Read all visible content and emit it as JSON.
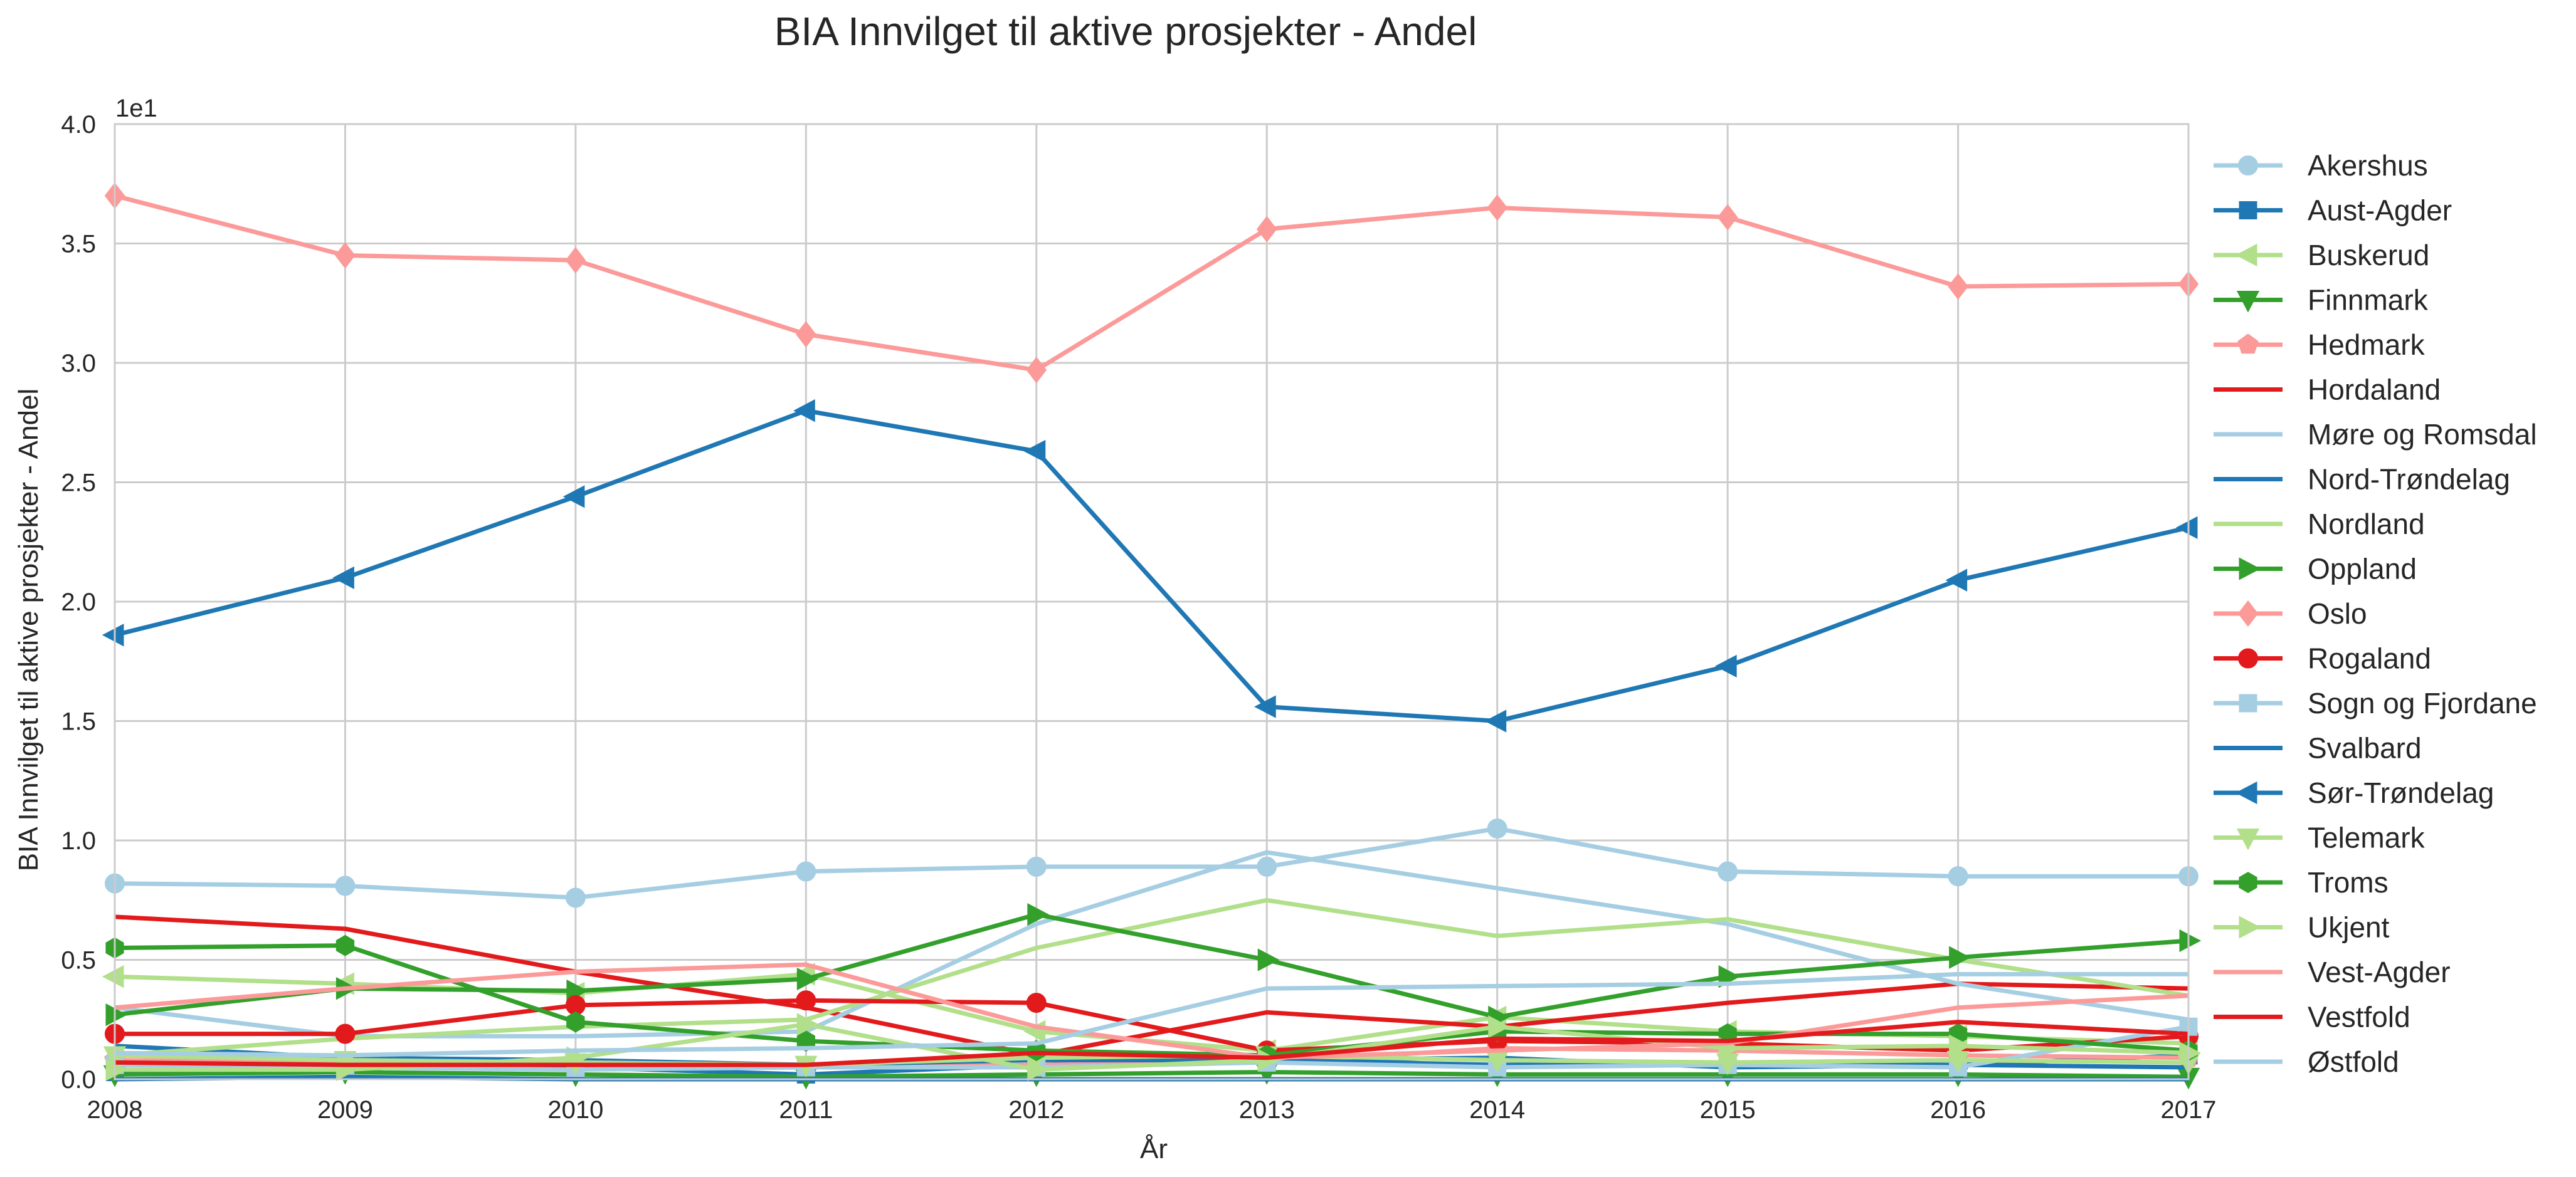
{
  "chart_data": {
    "type": "line",
    "title": "BIA Innvilget til aktive prosjekter - Andel",
    "xlabel": "År",
    "ylabel": "BIA Innvilget til aktive prosjekter - Andel",
    "y_offset_label": "1e1",
    "x": [
      2008,
      2009,
      2010,
      2011,
      2012,
      2013,
      2014,
      2015,
      2016,
      2017
    ],
    "x_ticks": [
      "2008",
      "2009",
      "2010",
      "2011",
      "2012",
      "2013",
      "2014",
      "2015",
      "2016",
      "2017"
    ],
    "y_ticks": [
      "0.0",
      "0.5",
      "1.0",
      "1.5",
      "2.0",
      "2.5",
      "3.0",
      "3.5",
      "4.0"
    ],
    "ylim": [
      0,
      4.0
    ],
    "xlim": [
      2008,
      2017
    ],
    "grid": true,
    "legend_position": "right, outside",
    "series": [
      {
        "name": "Akershus",
        "color": "#a6cee3",
        "marker": "circle",
        "values": [
          0.82,
          0.81,
          0.76,
          0.87,
          0.89,
          0.89,
          1.05,
          0.87,
          0.85,
          0.85
        ]
      },
      {
        "name": "Aust-Agder",
        "color": "#1f78b4",
        "marker": "square",
        "values": [
          0.03,
          0.05,
          0.05,
          0.02,
          0.06,
          0.08,
          0.09,
          0.05,
          0.06,
          0.1
        ]
      },
      {
        "name": "Buskerud",
        "color": "#b2df8a",
        "marker": "triangle-left",
        "values": [
          0.43,
          0.4,
          0.36,
          0.44,
          0.2,
          0.12,
          0.26,
          0.2,
          0.18,
          0.15
        ]
      },
      {
        "name": "Finnmark",
        "color": "#33a02c",
        "marker": "triangle-down",
        "values": [
          0.02,
          0.03,
          0.02,
          0.01,
          0.02,
          0.03,
          0.02,
          0.02,
          0.02,
          0.01
        ]
      },
      {
        "name": "Hedmark",
        "color": "#fb9a99",
        "marker": "pentagon",
        "values": [
          0.08,
          0.07,
          0.06,
          0.05,
          0.06,
          0.07,
          0.13,
          0.12,
          0.1,
          0.09
        ]
      },
      {
        "name": "Hordaland",
        "color": "#e31a1c",
        "marker": "none",
        "values": [
          0.68,
          0.63,
          0.45,
          0.3,
          0.1,
          0.28,
          0.22,
          0.32,
          0.4,
          0.38
        ]
      },
      {
        "name": "Møre og Romsdal",
        "color": "#a6cee3",
        "marker": "none",
        "values": [
          0.3,
          0.18,
          0.18,
          0.2,
          0.65,
          0.95,
          0.8,
          0.65,
          0.4,
          0.25
        ]
      },
      {
        "name": "Nord-Trøndelag",
        "color": "#1f78b4",
        "marker": "none",
        "values": [
          0.14,
          0.09,
          0.08,
          0.06,
          0.08,
          0.08,
          0.06,
          0.07,
          0.06,
          0.05
        ]
      },
      {
        "name": "Nordland",
        "color": "#b2df8a",
        "marker": "none",
        "values": [
          0.1,
          0.17,
          0.22,
          0.25,
          0.55,
          0.75,
          0.6,
          0.67,
          0.5,
          0.35
        ]
      },
      {
        "name": "Oppland",
        "color": "#33a02c",
        "marker": "triangle-right",
        "values": [
          0.27,
          0.38,
          0.37,
          0.42,
          0.69,
          0.5,
          0.26,
          0.43,
          0.51,
          0.58
        ]
      },
      {
        "name": "Oslo",
        "color": "#fb9a99",
        "marker": "diamond",
        "values": [
          3.7,
          3.45,
          3.43,
          3.12,
          2.97,
          3.56,
          3.65,
          3.61,
          3.32,
          3.33
        ]
      },
      {
        "name": "Rogaland",
        "color": "#e31a1c",
        "marker": "circle",
        "values": [
          0.19,
          0.19,
          0.31,
          0.33,
          0.32,
          0.12,
          0.16,
          0.15,
          0.12,
          0.18
        ]
      },
      {
        "name": "Sogn og Fjordane",
        "color": "#a6cee3",
        "marker": "square",
        "values": [
          0.06,
          0.05,
          0.04,
          0.05,
          0.05,
          0.07,
          0.05,
          0.06,
          0.05,
          0.22
        ]
      },
      {
        "name": "Svalbard",
        "color": "#1f78b4",
        "marker": "none",
        "values": [
          0.0,
          0.01,
          0.0,
          0.0,
          0.0,
          0.0,
          0.0,
          0.0,
          0.0,
          0.0
        ]
      },
      {
        "name": "Sør-Trøndelag",
        "color": "#1f78b4",
        "marker": "triangle-left",
        "values": [
          1.86,
          2.1,
          2.44,
          2.8,
          2.63,
          1.56,
          1.5,
          1.73,
          2.09,
          2.31
        ]
      },
      {
        "name": "Telemark",
        "color": "#b2df8a",
        "marker": "triangle-down",
        "values": [
          0.1,
          0.08,
          0.07,
          0.06,
          0.09,
          0.1,
          0.08,
          0.07,
          0.08,
          0.07
        ]
      },
      {
        "name": "Troms",
        "color": "#33a02c",
        "marker": "hexagon",
        "values": [
          0.55,
          0.56,
          0.24,
          0.16,
          0.12,
          0.1,
          0.2,
          0.19,
          0.19,
          0.12
        ]
      },
      {
        "name": "Ukjent",
        "color": "#b2df8a",
        "marker": "triangle-right",
        "values": [
          0.04,
          0.04,
          0.09,
          0.23,
          0.04,
          0.08,
          0.22,
          0.13,
          0.14,
          0.11
        ]
      },
      {
        "name": "Vest-Agder",
        "color": "#fb9a99",
        "marker": "none",
        "values": [
          0.3,
          0.38,
          0.45,
          0.48,
          0.22,
          0.09,
          0.12,
          0.15,
          0.3,
          0.35
        ]
      },
      {
        "name": "Vestfold",
        "color": "#e31a1c",
        "marker": "none",
        "values": [
          0.07,
          0.06,
          0.06,
          0.06,
          0.11,
          0.09,
          0.17,
          0.16,
          0.24,
          0.19
        ]
      },
      {
        "name": "Østfold",
        "color": "#a6cee3",
        "marker": "none",
        "values": [
          0.11,
          0.1,
          0.12,
          0.13,
          0.15,
          0.38,
          0.39,
          0.4,
          0.44,
          0.44
        ]
      }
    ]
  }
}
